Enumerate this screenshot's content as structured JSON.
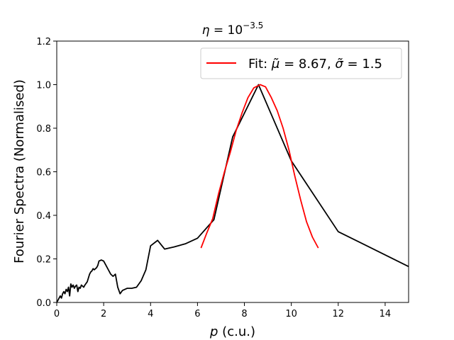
{
  "chart_data": {
    "type": "line",
    "title": "η = 10⁻³·⁵",
    "xlabel": "p (c.u.)",
    "ylabel": "Fourier Spectra (Normalised)",
    "xlim": [
      0,
      15
    ],
    "ylim": [
      0,
      1.2
    ],
    "xticks": [
      0,
      2,
      4,
      6,
      8,
      10,
      12,
      14
    ],
    "yticks": [
      0.0,
      0.2,
      0.4,
      0.6,
      0.8,
      1.0,
      1.2
    ],
    "xtick_labels": [
      "0",
      "2",
      "4",
      "6",
      "8",
      "10",
      "12",
      "14"
    ],
    "ytick_labels": [
      "0.0",
      "0.2",
      "0.4",
      "0.6",
      "0.8",
      "1.0",
      "1.2"
    ],
    "grid": false,
    "legend": {
      "placement": "top-right",
      "entries": [
        "Fit: μ̃ = 8.67, σ̃ = 1.5"
      ]
    },
    "series": [
      {
        "color": "#000000",
        "x": [
          0.0,
          0.1,
          0.15,
          0.2,
          0.25,
          0.3,
          0.35,
          0.4,
          0.45,
          0.5,
          0.55,
          0.6,
          0.65,
          0.7,
          0.75,
          0.8,
          0.85,
          0.9,
          0.95,
          1.0,
          1.05,
          1.1,
          1.15,
          1.2,
          1.3,
          1.4,
          1.45,
          1.5,
          1.55,
          1.6,
          1.7,
          1.75,
          1.8,
          1.9,
          2.0,
          2.1,
          2.2,
          2.3,
          2.4,
          2.5,
          2.6,
          2.7,
          2.8,
          2.9,
          3.0,
          3.2,
          3.4,
          3.6,
          3.8,
          4.0,
          4.3,
          4.6,
          5.0,
          5.5,
          6.0,
          6.7,
          7.5,
          8.6,
          10.0,
          12.0,
          15.0
        ],
        "y": [
          0.0,
          0.02,
          0.03,
          0.02,
          0.04,
          0.05,
          0.04,
          0.06,
          0.05,
          0.07,
          0.03,
          0.085,
          0.07,
          0.08,
          0.065,
          0.075,
          0.08,
          0.05,
          0.07,
          0.065,
          0.08,
          0.075,
          0.07,
          0.08,
          0.095,
          0.13,
          0.14,
          0.145,
          0.155,
          0.15,
          0.16,
          0.17,
          0.19,
          0.195,
          0.19,
          0.17,
          0.15,
          0.13,
          0.12,
          0.13,
          0.07,
          0.04,
          0.055,
          0.06,
          0.065,
          0.065,
          0.07,
          0.1,
          0.15,
          0.26,
          0.285,
          0.245,
          0.255,
          0.27,
          0.295,
          0.38,
          0.76,
          1.0,
          0.65,
          0.325,
          0.165
        ]
      },
      {
        "name": "Fit: μ̃ = 8.67, σ̃ = 1.5",
        "color": "#ff0000",
        "mu": 8.67,
        "sigma": 1.5,
        "x": [
          6.15,
          6.4,
          6.65,
          6.9,
          7.15,
          7.4,
          7.65,
          7.9,
          8.15,
          8.4,
          8.67,
          8.9,
          9.15,
          9.4,
          9.65,
          9.9,
          10.15,
          10.4,
          10.65,
          10.9,
          11.15
        ],
        "y": [
          0.25,
          0.32,
          0.385,
          0.5,
          0.6,
          0.69,
          0.79,
          0.87,
          0.94,
          0.985,
          1.0,
          0.99,
          0.94,
          0.88,
          0.8,
          0.7,
          0.58,
          0.47,
          0.37,
          0.3,
          0.25
        ]
      }
    ]
  }
}
